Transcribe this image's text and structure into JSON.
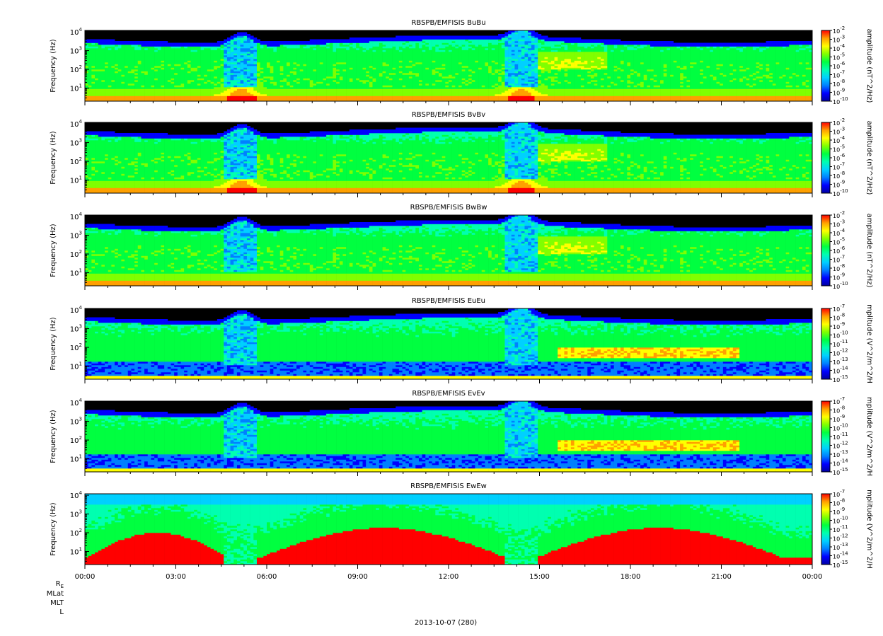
{
  "figure": {
    "date_label": "2013-10-07 (280)",
    "ephemeris_labels": [
      "RE",
      "MLat",
      "MLT",
      "L"
    ]
  },
  "colors": {
    "palette": [
      "#0000a0",
      "#0000ff",
      "#0080ff",
      "#00d0ff",
      "#00ffb0",
      "#00ff40",
      "#80ff00",
      "#ffff00",
      "#ffa000",
      "#ff0000"
    ],
    "background_no_data": "#000000"
  },
  "chart_data": [
    {
      "type": "heatmap",
      "title": "RBSPB/EMFISIS  BuBu",
      "ylabel": "Frequency (Hz)",
      "yscale": "log",
      "yticks": [
        "10^1",
        "10^2",
        "10^3",
        "10^4"
      ],
      "xticks": [
        "00:00",
        "03:00",
        "06:00",
        "09:00",
        "12:00",
        "15:00",
        "18:00",
        "21:00",
        "00:00"
      ],
      "colorbar_label": "amplitude (nT^2/Hz)",
      "colorbar_ticks": [
        "10^-2",
        "10^-3",
        "10^-4",
        "10^-5",
        "10^-6",
        "10^-7",
        "10^-8",
        "10^-9",
        "10^-10"
      ],
      "cmin_exp": -10,
      "cmax_exp": -2,
      "profile": "B"
    },
    {
      "type": "heatmap",
      "title": "RBSPB/EMFISIS  BvBv",
      "ylabel": "Frequency (Hz)",
      "yscale": "log",
      "yticks": [
        "10^1",
        "10^2",
        "10^3",
        "10^4"
      ],
      "xticks": [
        "00:00",
        "03:00",
        "06:00",
        "09:00",
        "12:00",
        "15:00",
        "18:00",
        "21:00",
        "00:00"
      ],
      "colorbar_label": "amplitude (nT^2/Hz)",
      "colorbar_ticks": [
        "10^-2",
        "10^-3",
        "10^-4",
        "10^-5",
        "10^-6",
        "10^-7",
        "10^-8",
        "10^-9",
        "10^-10"
      ],
      "cmin_exp": -10,
      "cmax_exp": -2,
      "profile": "B"
    },
    {
      "type": "heatmap",
      "title": "RBSPB/EMFISIS  BwBw",
      "ylabel": "Frequency (Hz)",
      "yscale": "log",
      "yticks": [
        "10^1",
        "10^2",
        "10^3",
        "10^4"
      ],
      "xticks": [
        "00:00",
        "03:00",
        "06:00",
        "09:00",
        "12:00",
        "15:00",
        "18:00",
        "21:00",
        "00:00"
      ],
      "colorbar_label": "amplitude (nT^2/Hz)",
      "colorbar_ticks": [
        "10^-2",
        "10^-3",
        "10^-4",
        "10^-5",
        "10^-6",
        "10^-7",
        "10^-8",
        "10^-9",
        "10^-10"
      ],
      "cmin_exp": -10,
      "cmax_exp": -2,
      "profile": "Bw"
    },
    {
      "type": "heatmap",
      "title": "RBSPB/EMFISIS  EuEu",
      "ylabel": "Frequency (Hz)",
      "yscale": "log",
      "yticks": [
        "10^1",
        "10^2",
        "10^3",
        "10^4"
      ],
      "xticks": [
        "00:00",
        "03:00",
        "06:00",
        "09:00",
        "12:00",
        "15:00",
        "18:00",
        "21:00",
        "00:00"
      ],
      "colorbar_label": "mplitude (V^2/m^2/H",
      "colorbar_ticks": [
        "10^-7",
        "10^-8",
        "10^-9",
        "10^-10",
        "10^-11",
        "10^-12",
        "10^-13",
        "10^-14",
        "10^-15"
      ],
      "cmin_exp": -15,
      "cmax_exp": -7,
      "profile": "E"
    },
    {
      "type": "heatmap",
      "title": "RBSPB/EMFISIS  EvEv",
      "ylabel": "Frequency (Hz)",
      "yscale": "log",
      "yticks": [
        "10^1",
        "10^2",
        "10^3",
        "10^4"
      ],
      "xticks": [
        "00:00",
        "03:00",
        "06:00",
        "09:00",
        "12:00",
        "15:00",
        "18:00",
        "21:00",
        "00:00"
      ],
      "colorbar_label": "mplitude (V^2/m^2/H",
      "colorbar_ticks": [
        "10^-7",
        "10^-8",
        "10^-9",
        "10^-10",
        "10^-11",
        "10^-12",
        "10^-13",
        "10^-14",
        "10^-15"
      ],
      "cmin_exp": -15,
      "cmax_exp": -7,
      "profile": "E"
    },
    {
      "type": "heatmap",
      "title": "RBSPB/EMFISIS  EwEw",
      "ylabel": "Frequency (Hz)",
      "yscale": "log",
      "yticks": [
        "10^1",
        "10^2",
        "10^3",
        "10^4"
      ],
      "xticks": [
        "00:00",
        "03:00",
        "06:00",
        "09:00",
        "12:00",
        "15:00",
        "18:00",
        "21:00",
        "00:00"
      ],
      "colorbar_label": "mplitude (V^2/m^2/H",
      "colorbar_ticks": [
        "10^-7",
        "10^-8",
        "10^-9",
        "10^-10",
        "10^-11",
        "10^-12",
        "10^-13",
        "10^-14",
        "10^-15"
      ],
      "cmin_exp": -15,
      "cmax_exp": -7,
      "profile": "Ew"
    }
  ]
}
